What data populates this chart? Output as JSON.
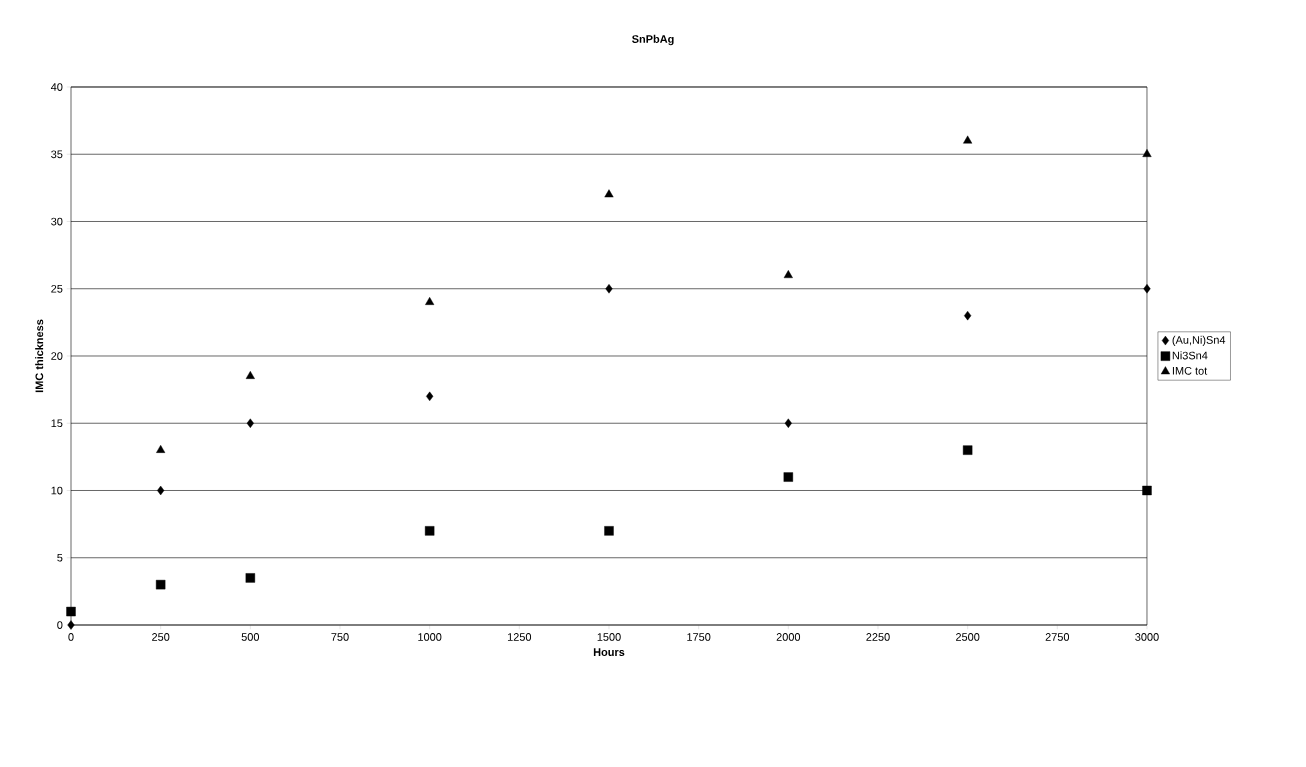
{
  "chart_data": {
    "type": "scatter",
    "title": "SnPbAg",
    "xlabel": "Hours",
    "ylabel": "IMC thickness",
    "x": [
      0,
      250,
      500,
      1000,
      1500,
      2000,
      2500,
      3000
    ],
    "series": [
      {
        "name": "(Au,Ni)Sn4",
        "color": "#000000",
        "marker": "diamond",
        "values": [
          0,
          10,
          15,
          17,
          25,
          15,
          23,
          25
        ]
      },
      {
        "name": "Ni3Sn4",
        "color": "#000000",
        "marker": "square",
        "values": [
          1,
          3,
          3.5,
          7,
          7,
          11,
          13,
          10
        ]
      },
      {
        "name": "IMC tot",
        "color": "#000000",
        "marker": "triangle",
        "values": [
          null,
          13,
          18.5,
          24,
          32,
          26,
          36,
          35
        ]
      }
    ],
    "xlim": [
      0,
      3000
    ],
    "ylim": [
      0,
      40
    ],
    "xticks": [
      0,
      250,
      500,
      750,
      1000,
      1250,
      1500,
      1750,
      2000,
      2250,
      2500,
      2750,
      3000
    ],
    "yticks": [
      0,
      5,
      10,
      15,
      20,
      25,
      30,
      35,
      40
    ],
    "grid": "y",
    "legend": "right"
  }
}
